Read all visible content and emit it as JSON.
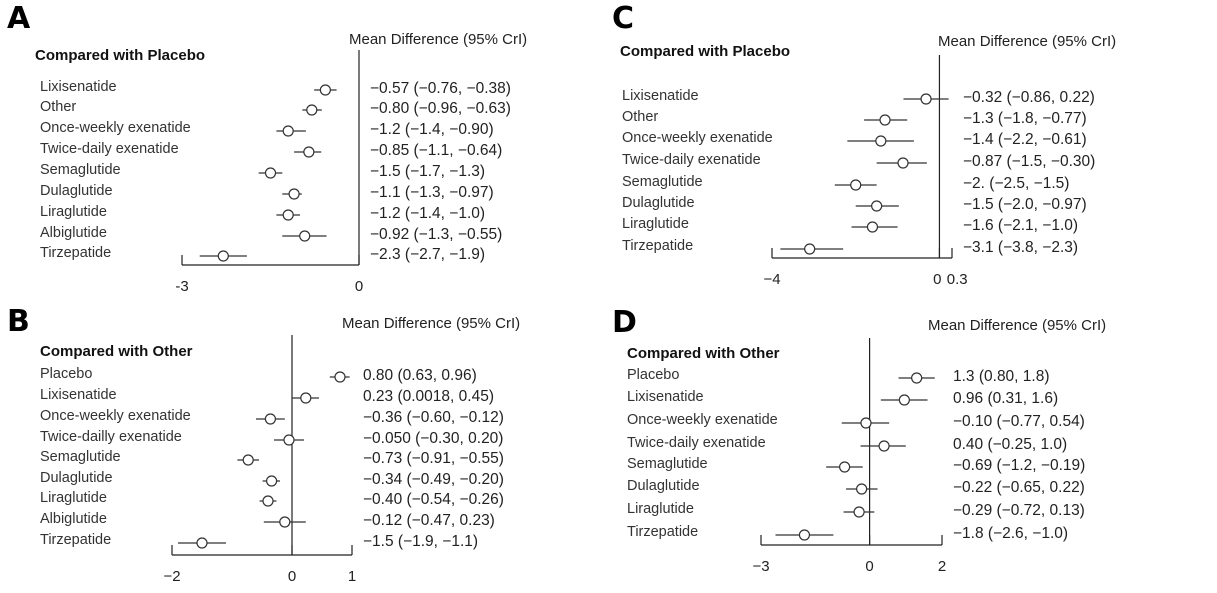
{
  "chart_data": [
    {
      "type": "forest",
      "panel": "A",
      "title": "Compared with Placebo",
      "header": "Mean Difference (95% CrI)",
      "xlim": [
        -3,
        0
      ],
      "ticks": [
        "-3",
        "0"
      ],
      "tick_values": [
        -3,
        0
      ],
      "rows": [
        {
          "label": "Lixisenatide",
          "mean": -0.57,
          "lower": -0.76,
          "upper": -0.38,
          "text": "−0.57 (−0.76, −0.38)"
        },
        {
          "label": "Other",
          "mean": -0.8,
          "lower": -0.96,
          "upper": -0.63,
          "text": "−0.80 (−0.96, −0.63)"
        },
        {
          "label": "Once-weekly exenatide",
          "mean": -1.2,
          "lower": -1.4,
          "upper": -0.9,
          "text": "−1.2 (−1.4, −0.90)"
        },
        {
          "label": "Twice-daily exenatide",
          "mean": -0.85,
          "lower": -1.1,
          "upper": -0.64,
          "text": "−0.85 (−1.1, −0.64)"
        },
        {
          "label": "Semaglutide",
          "mean": -1.5,
          "lower": -1.7,
          "upper": -1.3,
          "text": "−1.5 (−1.7, −1.3)"
        },
        {
          "label": "Dulaglutide",
          "mean": -1.1,
          "lower": -1.3,
          "upper": -0.97,
          "text": "−1.1 (−1.3, −0.97)"
        },
        {
          "label": "Liraglutide",
          "mean": -1.2,
          "lower": -1.4,
          "upper": -1.0,
          "text": "−1.2 (−1.4, −1.0)"
        },
        {
          "label": "Albiglutide",
          "mean": -0.92,
          "lower": -1.3,
          "upper": -0.55,
          "text": "−0.92 (−1.3, −0.55)"
        },
        {
          "label": "Tirzepatide",
          "mean": -2.3,
          "lower": -2.7,
          "upper": -1.9,
          "text": "−2.3 (−2.7, −1.9)"
        }
      ]
    },
    {
      "type": "forest",
      "panel": "B",
      "title": "Compared with Other",
      "header": "Mean Difference (95% CrI)",
      "xlim": [
        -2,
        1
      ],
      "ticks": [
        "−2",
        "0",
        "1"
      ],
      "tick_values": [
        -2,
        0,
        1
      ],
      "rows": [
        {
          "label": "Placebo",
          "mean": 0.8,
          "lower": 0.63,
          "upper": 0.96,
          "text": "0.80 (0.63, 0.96)"
        },
        {
          "label": "Lixisenatide",
          "mean": 0.23,
          "lower": 0.0018,
          "upper": 0.45,
          "text": "0.23 (0.0018, 0.45)"
        },
        {
          "label": "Once-weekly exenatide",
          "mean": -0.36,
          "lower": -0.6,
          "upper": -0.12,
          "text": "−0.36 (−0.60, −0.12)"
        },
        {
          "label": "Twice-dailly exenatide",
          "mean": -0.05,
          "lower": -0.3,
          "upper": 0.2,
          "text": "−0.050 (−0.30, 0.20)"
        },
        {
          "label": "Semaglutide",
          "mean": -0.73,
          "lower": -0.91,
          "upper": -0.55,
          "text": "−0.73 (−0.91, −0.55)"
        },
        {
          "label": "Dulaglutide",
          "mean": -0.34,
          "lower": -0.49,
          "upper": -0.2,
          "text": "−0.34 (−0.49, −0.20)"
        },
        {
          "label": "Liraglutide",
          "mean": -0.4,
          "lower": -0.54,
          "upper": -0.26,
          "text": "−0.40 (−0.54, −0.26)"
        },
        {
          "label": "Albiglutide",
          "mean": -0.12,
          "lower": -0.47,
          "upper": 0.23,
          "text": "−0.12 (−0.47, 0.23)"
        },
        {
          "label": "Tirzepatide",
          "mean": -1.5,
          "lower": -1.9,
          "upper": -1.1,
          "text": "−1.5 (−1.9, −1.1)"
        }
      ]
    },
    {
      "type": "forest",
      "panel": "C",
      "title": "Compared with Placebo",
      "header": "Mean Difference (95% CrI)",
      "xlim": [
        -4,
        0.3
      ],
      "ticks": [
        "−4",
        "0",
        "0.3"
      ],
      "tick_values": [
        -4,
        0,
        0.3
      ],
      "rows": [
        {
          "label": "Lixisenatide",
          "mean": -0.32,
          "lower": -0.86,
          "upper": 0.22,
          "text": "−0.32 (−0.86, 0.22)"
        },
        {
          "label": "Other",
          "mean": -1.3,
          "lower": -1.8,
          "upper": -0.77,
          "text": "−1.3 (−1.8, −0.77)"
        },
        {
          "label": "Once-weekly exenatide",
          "mean": -1.4,
          "lower": -2.2,
          "upper": -0.61,
          "text": "−1.4 (−2.2, −0.61)"
        },
        {
          "label": "Twice-daily exenatide",
          "mean": -0.87,
          "lower": -1.5,
          "upper": -0.3,
          "text": "−0.87 (−1.5, −0.30)"
        },
        {
          "label": "Semaglutide",
          "mean": -2.0,
          "lower": -2.5,
          "upper": -1.5,
          "text": "−2. (−2.5, −1.5)"
        },
        {
          "label": "Dulaglutide",
          "mean": -1.5,
          "lower": -2.0,
          "upper": -0.97,
          "text": "−1.5 (−2.0, −0.97)"
        },
        {
          "label": "Liraglutide",
          "mean": -1.6,
          "lower": -2.1,
          "upper": -1.0,
          "text": "−1.6 (−2.1, −1.0)"
        },
        {
          "label": "Tirzepatide",
          "mean": -3.1,
          "lower": -3.8,
          "upper": -2.3,
          "text": "−3.1 (−3.8, −2.3)"
        }
      ]
    },
    {
      "type": "forest",
      "panel": "D",
      "title": "Compared with Other",
      "header": "Mean Difference (95% CrI)",
      "xlim": [
        -3,
        2
      ],
      "ticks": [
        "−3",
        "0",
        "2"
      ],
      "tick_values": [
        -3,
        0,
        2
      ],
      "rows": [
        {
          "label": "Placebo",
          "mean": 1.3,
          "lower": 0.8,
          "upper": 1.8,
          "text": "1.3 (0.80, 1.8)"
        },
        {
          "label": "Lixisenatide",
          "mean": 0.96,
          "lower": 0.31,
          "upper": 1.6,
          "text": "0.96 (0.31, 1.6)"
        },
        {
          "label": "Once-weekly exenatide",
          "mean": -0.1,
          "lower": -0.77,
          "upper": 0.54,
          "text": "−0.10 (−0.77, 0.54)"
        },
        {
          "label": "Twice-daily exenatide",
          "mean": 0.4,
          "lower": -0.25,
          "upper": 1.0,
          "text": "0.40 (−0.25, 1.0)"
        },
        {
          "label": "Semaglutide",
          "mean": -0.69,
          "lower": -1.2,
          "upper": -0.19,
          "text": "−0.69 (−1.2, −0.19)"
        },
        {
          "label": "Dulaglutide",
          "mean": -0.22,
          "lower": -0.65,
          "upper": 0.22,
          "text": "−0.22 (−0.65, 0.22)"
        },
        {
          "label": "Liraglutide",
          "mean": -0.29,
          "lower": -0.72,
          "upper": 0.13,
          "text": "−0.29 (−0.72, 0.13)"
        },
        {
          "label": "Tirzepatide",
          "mean": -1.8,
          "lower": -2.6,
          "upper": -1.0,
          "text": "−1.8 (−2.6, −1.0)"
        }
      ]
    }
  ]
}
